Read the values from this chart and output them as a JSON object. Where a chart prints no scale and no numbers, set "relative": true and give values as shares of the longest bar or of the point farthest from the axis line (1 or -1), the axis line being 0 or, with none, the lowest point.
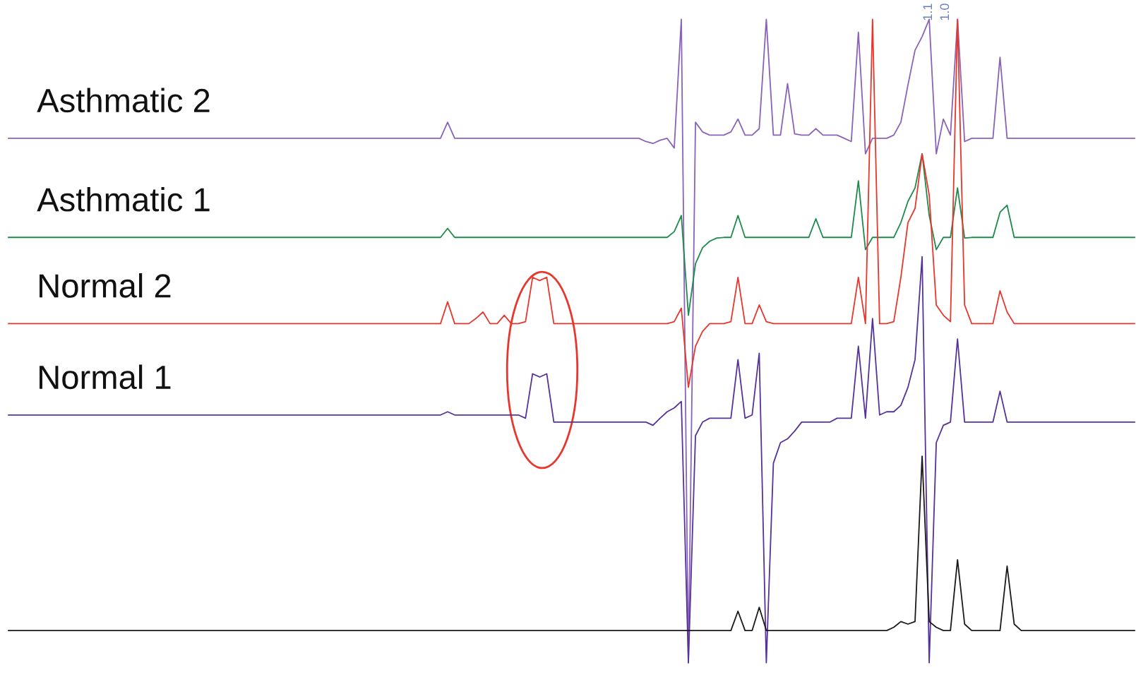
{
  "chart_data": {
    "type": "line",
    "relative": true,
    "legend": false,
    "categories": [
      null,
      null,
      null,
      null,
      null,
      null,
      null,
      null,
      null,
      null,
      null,
      null,
      null,
      null,
      null,
      null,
      null,
      null,
      null,
      null,
      null,
      null,
      null,
      null,
      null,
      null,
      null,
      null,
      null,
      null,
      null,
      null,
      null,
      null,
      null,
      null,
      null,
      null,
      null,
      null,
      null,
      null,
      null,
      null,
      null,
      null,
      null,
      null,
      null,
      null,
      null,
      null,
      null,
      null,
      null,
      null,
      null,
      null,
      null,
      null,
      null,
      null,
      null,
      null,
      null,
      null,
      null,
      null,
      null,
      null,
      null,
      null,
      null,
      null,
      null,
      null,
      null,
      null,
      null,
      null,
      null,
      null,
      null,
      null,
      null,
      null,
      null,
      null,
      null,
      null,
      null,
      null,
      null,
      null,
      null,
      null,
      null,
      null,
      null,
      null,
      null,
      null,
      null,
      null,
      null,
      null,
      null,
      null,
      null,
      null,
      null,
      null,
      null,
      null,
      null,
      null,
      null,
      null,
      null,
      null,
      null,
      null,
      null,
      null,
      null,
      null,
      null,
      null,
      null,
      null,
      null,
      null,
      null,
      null,
      null,
      null,
      null,
      null,
      null,
      null,
      null,
      null,
      null,
      null,
      null,
      null,
      null,
      null,
      null,
      null,
      null,
      null,
      null,
      null,
      null,
      null,
      null,
      null,
      null,
      null
    ],
    "series": [
      {
        "name": "Asthmatic 2",
        "color": "#8a63b8",
        "values": [
          0.815,
          0.815,
          0.815,
          0.815,
          0.815,
          0.815,
          0.815,
          0.815,
          0.815,
          0.815,
          0.815,
          0.815,
          0.815,
          0.815,
          0.815,
          0.815,
          0.815,
          0.815,
          0.815,
          0.815,
          0.815,
          0.815,
          0.815,
          0.815,
          0.815,
          0.815,
          0.815,
          0.815,
          0.815,
          0.815,
          0.815,
          0.815,
          0.815,
          0.815,
          0.815,
          0.815,
          0.815,
          0.815,
          0.815,
          0.815,
          0.815,
          0.815,
          0.815,
          0.815,
          0.815,
          0.815,
          0.815,
          0.815,
          0.815,
          0.815,
          0.815,
          0.815,
          0.815,
          0.815,
          0.815,
          0.815,
          0.815,
          0.815,
          0.815,
          0.815,
          0.815,
          0.815,
          0.84,
          0.815,
          0.815,
          0.815,
          0.815,
          0.815,
          0.815,
          0.815,
          0.815,
          0.815,
          0.815,
          0.815,
          0.815,
          0.815,
          0.815,
          0.815,
          0.815,
          0.815,
          0.815,
          0.815,
          0.815,
          0.815,
          0.815,
          0.815,
          0.815,
          0.815,
          0.815,
          0.815,
          0.81,
          0.807,
          0.812,
          0.815,
          0.8,
          1.0,
          0.0,
          0.84,
          0.825,
          0.82,
          0.82,
          0.82,
          0.825,
          0.845,
          0.82,
          0.82,
          0.83,
          1.0,
          0.82,
          0.82,
          0.9,
          0.822,
          0.82,
          0.82,
          0.83,
          0.82,
          0.82,
          0.82,
          0.815,
          0.81,
          0.98,
          0.791,
          0.815,
          0.815,
          0.815,
          0.82,
          0.84,
          0.898,
          0.952,
          0.973,
          1.0,
          0.791,
          0.845,
          0.82,
          1.0,
          0.81,
          0.815,
          0.815,
          0.815,
          0.815,
          0.941,
          0.815,
          0.815,
          0.815,
          0.815,
          0.815,
          0.815,
          0.815,
          0.815,
          0.815,
          0.815,
          0.815,
          0.815,
          0.815,
          0.815,
          0.815,
          0.815,
          0.815,
          0.815,
          0.815
        ]
      },
      {
        "name": "Asthmatic 1",
        "color": "#1e8a4c",
        "values": [
          0.661,
          0.661,
          0.661,
          0.661,
          0.661,
          0.661,
          0.661,
          0.661,
          0.661,
          0.661,
          0.661,
          0.661,
          0.661,
          0.661,
          0.661,
          0.661,
          0.661,
          0.661,
          0.661,
          0.661,
          0.661,
          0.661,
          0.661,
          0.661,
          0.661,
          0.661,
          0.661,
          0.661,
          0.661,
          0.661,
          0.661,
          0.661,
          0.661,
          0.661,
          0.661,
          0.661,
          0.661,
          0.661,
          0.661,
          0.661,
          0.661,
          0.661,
          0.661,
          0.661,
          0.661,
          0.661,
          0.661,
          0.661,
          0.661,
          0.661,
          0.661,
          0.661,
          0.661,
          0.661,
          0.661,
          0.661,
          0.661,
          0.661,
          0.661,
          0.661,
          0.661,
          0.661,
          0.675,
          0.661,
          0.661,
          0.661,
          0.661,
          0.661,
          0.661,
          0.661,
          0.661,
          0.661,
          0.661,
          0.661,
          0.661,
          0.661,
          0.661,
          0.661,
          0.661,
          0.661,
          0.661,
          0.661,
          0.661,
          0.661,
          0.661,
          0.661,
          0.661,
          0.661,
          0.661,
          0.661,
          0.661,
          0.661,
          0.661,
          0.661,
          0.67,
          0.695,
          0.54,
          0.62,
          0.645,
          0.655,
          0.66,
          0.661,
          0.661,
          0.695,
          0.661,
          0.661,
          0.661,
          0.661,
          0.661,
          0.661,
          0.661,
          0.661,
          0.661,
          0.661,
          0.69,
          0.661,
          0.661,
          0.661,
          0.661,
          0.661,
          0.749,
          0.642,
          0.661,
          0.661,
          0.661,
          0.661,
          0.684,
          0.717,
          0.738,
          0.791,
          0.695,
          0.642,
          0.661,
          0.661,
          0.738,
          0.66,
          0.661,
          0.661,
          0.661,
          0.661,
          0.7,
          0.711,
          0.661,
          0.661,
          0.661,
          0.661,
          0.661,
          0.661,
          0.661,
          0.661,
          0.661,
          0.661,
          0.661,
          0.661,
          0.661,
          0.661,
          0.661,
          0.661,
          0.661,
          0.661
        ]
      },
      {
        "name": "Normal 2",
        "color": "#e8362c",
        "values": [
          0.527,
          0.527,
          0.527,
          0.527,
          0.527,
          0.527,
          0.527,
          0.527,
          0.527,
          0.527,
          0.527,
          0.527,
          0.527,
          0.527,
          0.527,
          0.527,
          0.527,
          0.527,
          0.527,
          0.527,
          0.527,
          0.527,
          0.527,
          0.527,
          0.527,
          0.527,
          0.527,
          0.527,
          0.527,
          0.527,
          0.527,
          0.527,
          0.527,
          0.527,
          0.527,
          0.527,
          0.527,
          0.527,
          0.527,
          0.527,
          0.527,
          0.527,
          0.527,
          0.527,
          0.527,
          0.527,
          0.527,
          0.527,
          0.527,
          0.527,
          0.527,
          0.527,
          0.527,
          0.527,
          0.527,
          0.527,
          0.527,
          0.527,
          0.527,
          0.527,
          0.527,
          0.527,
          0.561,
          0.527,
          0.527,
          0.527,
          0.535,
          0.545,
          0.527,
          0.527,
          0.54,
          0.527,
          0.527,
          0.53,
          0.599,
          0.594,
          0.599,
          0.527,
          0.527,
          0.527,
          0.527,
          0.527,
          0.527,
          0.527,
          0.527,
          0.527,
          0.527,
          0.527,
          0.527,
          0.527,
          0.527,
          0.527,
          0.527,
          0.527,
          0.53,
          0.551,
          0.428,
          0.492,
          0.515,
          0.527,
          0.527,
          0.527,
          0.53,
          0.599,
          0.527,
          0.527,
          0.556,
          0.53,
          0.527,
          0.527,
          0.527,
          0.527,
          0.527,
          0.527,
          0.527,
          0.527,
          0.527,
          0.527,
          0.527,
          0.527,
          0.599,
          0.527,
          1.0,
          0.527,
          0.527,
          0.53,
          0.599,
          0.684,
          0.706,
          0.791,
          0.727,
          0.556,
          0.54,
          0.53,
          1.0,
          0.556,
          0.527,
          0.527,
          0.527,
          0.527,
          0.578,
          0.545,
          0.527,
          0.527,
          0.527,
          0.527,
          0.527,
          0.527,
          0.527,
          0.527,
          0.527,
          0.527,
          0.527,
          0.527,
          0.527,
          0.527,
          0.527,
          0.527,
          0.527,
          0.527
        ]
      },
      {
        "name": "Normal 1",
        "color": "#55339a",
        "values": [
          0.385,
          0.385,
          0.385,
          0.385,
          0.385,
          0.385,
          0.385,
          0.385,
          0.385,
          0.385,
          0.385,
          0.385,
          0.385,
          0.385,
          0.385,
          0.385,
          0.385,
          0.385,
          0.385,
          0.385,
          0.385,
          0.385,
          0.385,
          0.385,
          0.385,
          0.385,
          0.385,
          0.385,
          0.385,
          0.385,
          0.385,
          0.385,
          0.385,
          0.385,
          0.385,
          0.385,
          0.385,
          0.385,
          0.385,
          0.385,
          0.385,
          0.385,
          0.385,
          0.385,
          0.385,
          0.385,
          0.385,
          0.385,
          0.385,
          0.385,
          0.385,
          0.385,
          0.385,
          0.385,
          0.385,
          0.385,
          0.385,
          0.385,
          0.385,
          0.385,
          0.385,
          0.385,
          0.39,
          0.385,
          0.385,
          0.385,
          0.385,
          0.385,
          0.385,
          0.385,
          0.385,
          0.385,
          0.385,
          0.38,
          0.449,
          0.444,
          0.449,
          0.374,
          0.374,
          0.374,
          0.374,
          0.374,
          0.374,
          0.374,
          0.374,
          0.374,
          0.374,
          0.374,
          0.374,
          0.374,
          0.374,
          0.369,
          0.38,
          0.39,
          0.396,
          0.406,
          0.0,
          0.353,
          0.374,
          0.38,
          0.38,
          0.38,
          0.38,
          0.471,
          0.38,
          0.385,
          0.481,
          0.0,
          0.31,
          0.342,
          0.348,
          0.36,
          0.374,
          0.374,
          0.374,
          0.374,
          0.374,
          0.38,
          0.38,
          0.38,
          0.492,
          0.38,
          0.535,
          0.385,
          0.39,
          0.39,
          0.4,
          0.428,
          0.471,
          0.631,
          0.0,
          0.342,
          0.369,
          0.374,
          0.503,
          0.374,
          0.374,
          0.374,
          0.374,
          0.374,
          0.422,
          0.374,
          0.374,
          0.374,
          0.374,
          0.374,
          0.374,
          0.374,
          0.374,
          0.374,
          0.374,
          0.374,
          0.374,
          0.374,
          0.374,
          0.374,
          0.374,
          0.374,
          0.374,
          0.374
        ]
      },
      {
        "color": "#1a1a1a",
        "values": [
          0.05,
          0.05,
          0.05,
          0.05,
          0.05,
          0.05,
          0.05,
          0.05,
          0.05,
          0.05,
          0.05,
          0.05,
          0.05,
          0.05,
          0.05,
          0.05,
          0.05,
          0.05,
          0.05,
          0.05,
          0.05,
          0.05,
          0.05,
          0.05,
          0.05,
          0.05,
          0.05,
          0.05,
          0.05,
          0.05,
          0.05,
          0.05,
          0.05,
          0.05,
          0.05,
          0.05,
          0.05,
          0.05,
          0.05,
          0.05,
          0.05,
          0.05,
          0.05,
          0.05,
          0.05,
          0.05,
          0.05,
          0.05,
          0.05,
          0.05,
          0.05,
          0.05,
          0.05,
          0.05,
          0.05,
          0.05,
          0.05,
          0.05,
          0.05,
          0.05,
          0.05,
          0.05,
          0.05,
          0.05,
          0.05,
          0.05,
          0.05,
          0.05,
          0.05,
          0.05,
          0.05,
          0.05,
          0.05,
          0.05,
          0.05,
          0.05,
          0.05,
          0.05,
          0.05,
          0.05,
          0.05,
          0.05,
          0.05,
          0.05,
          0.05,
          0.05,
          0.05,
          0.05,
          0.05,
          0.05,
          0.05,
          0.05,
          0.05,
          0.05,
          0.05,
          0.05,
          0.05,
          0.05,
          0.05,
          0.05,
          0.05,
          0.05,
          0.05,
          0.08,
          0.05,
          0.05,
          0.086,
          0.05,
          0.05,
          0.05,
          0.05,
          0.05,
          0.05,
          0.05,
          0.05,
          0.05,
          0.05,
          0.05,
          0.05,
          0.05,
          0.05,
          0.05,
          0.05,
          0.05,
          0.05,
          0.055,
          0.064,
          0.06,
          0.064,
          0.321,
          0.064,
          0.055,
          0.05,
          0.05,
          0.16,
          0.06,
          0.05,
          0.05,
          0.05,
          0.05,
          0.05,
          0.15,
          0.06,
          0.05,
          0.05,
          0.05,
          0.05,
          0.05,
          0.05,
          0.05,
          0.05,
          0.05,
          0.05,
          0.05,
          0.05,
          0.05,
          0.05,
          0.05,
          0.05,
          0.05
        ]
      }
    ],
    "annotations": [
      "1.1",
      "1.0"
    ]
  }
}
